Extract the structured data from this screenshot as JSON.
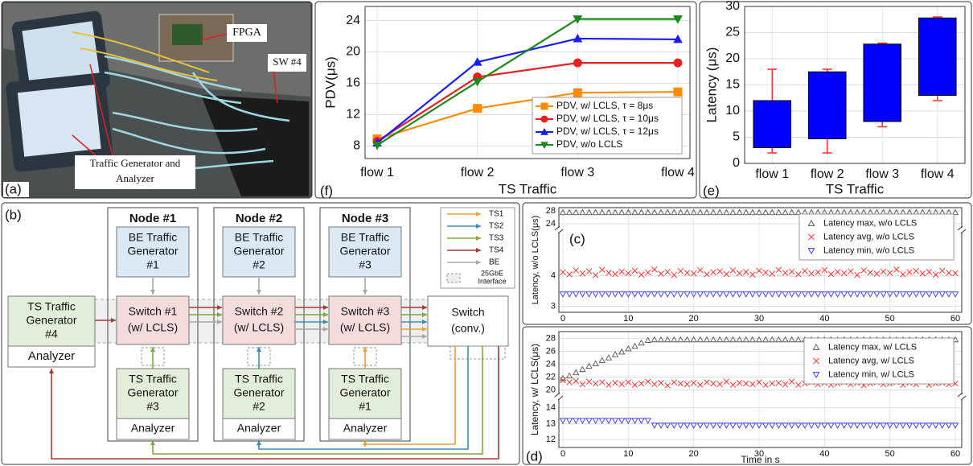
{
  "photo": {
    "label": "(a)",
    "callouts": {
      "fpga": "FPGA",
      "switch": "SW #4",
      "generator": [
        "Traffic Generator and",
        "Analyzer"
      ]
    }
  },
  "diagram": {
    "label": "(b)",
    "nodes": [
      {
        "title": "Node #1",
        "be_generator": [
          "BE Traffic",
          "Generator",
          "#1"
        ],
        "switch": [
          "Switch #1",
          "(w/ LCLS)"
        ],
        "ts_generator": [
          "TS Traffic",
          "Generator",
          "#3"
        ],
        "analyzer": "Analyzer"
      },
      {
        "title": "Node #2",
        "be_generator": [
          "BE Traffic",
          "Generator",
          "#2"
        ],
        "switch": [
          "Switch #2",
          "(w/ LCLS)"
        ],
        "ts_generator": [
          "TS Traffic",
          "Generator",
          "#2"
        ],
        "analyzer": "Analyzer"
      },
      {
        "title": "Node #3",
        "be_generator": [
          "BE Traffic",
          "Generator",
          "#3"
        ],
        "switch": [
          "Switch #3",
          "(w/ LCLS)"
        ],
        "ts_generator": [
          "TS Traffic",
          "Generator",
          "#1"
        ],
        "analyzer": "Analyzer"
      }
    ],
    "external": {
      "ts_generator": [
        "TS Traffic",
        "Generator",
        "#4"
      ],
      "analyzer": "Analyzer"
    },
    "conventional_switch": [
      "Switch",
      "(conv.)"
    ],
    "legend": [
      {
        "name": "TS1",
        "color": "#e6a23c"
      },
      {
        "name": "TS2",
        "color": "#3b8fb5"
      },
      {
        "name": "TS3",
        "color": "#7fa83e"
      },
      {
        "name": "TS4",
        "color": "#a33a32"
      },
      {
        "name": "BE",
        "color": "#a8a8a8"
      }
    ],
    "interface_legend": [
      "25GbE",
      "Interface"
    ]
  },
  "chart_data": [
    {
      "type": "line",
      "label": "(f)",
      "xlabel": "TS Traffic",
      "ylabel": "PDV(μs)",
      "categories": [
        "flow 1",
        "flow 2",
        "flow 3",
        "flow 4"
      ],
      "ylim": [
        6.4,
        25.8
      ],
      "yticks": [
        8,
        12,
        16,
        20,
        24
      ],
      "grid": true,
      "legend": "lower right",
      "series": [
        {
          "name": "PDV, w/ LCLS, τ = 8μs",
          "color": "#ff8c00",
          "marker": "square",
          "values": [
            8.9,
            12.8,
            14.8,
            14.9
          ]
        },
        {
          "name": "PDV, w/ LCLS, τ = 10μs",
          "color": "#e82020",
          "marker": "circle",
          "values": [
            8.6,
            16.8,
            18.6,
            18.6
          ]
        },
        {
          "name": "PDV, w/ LCLS, τ = 12μs",
          "color": "#1a1aff",
          "marker": "triangle-up",
          "values": [
            8.4,
            18.7,
            21.7,
            21.6
          ]
        },
        {
          "name": "PDV, w/o LCLS",
          "color": "#1a8a1a",
          "marker": "triangle-down",
          "values": [
            8.1,
            16.2,
            24.2,
            24.2
          ]
        }
      ]
    },
    {
      "type": "box",
      "label": "(e)",
      "xlabel": "TS Traffic",
      "ylabel": "Latency (μs)",
      "categories": [
        "flow 1",
        "flow 2",
        "flow 3",
        "flow 4"
      ],
      "ylim": [
        0,
        30
      ],
      "yticks": [
        0,
        5,
        10,
        15,
        20,
        25,
        30
      ],
      "grid": true,
      "color": "#0000ff",
      "whisker_color": "#ff3030",
      "boxes": [
        {
          "low": 2,
          "q1": 3,
          "q3": 12,
          "high": 18
        },
        {
          "low": 2,
          "q1": 4.7,
          "q3": 17.5,
          "high": 18
        },
        {
          "low": 7,
          "q1": 8,
          "q3": 22.8,
          "high": 23
        },
        {
          "low": 12,
          "q1": 13,
          "q3": 27.8,
          "high": 28
        }
      ]
    },
    {
      "type": "scatter",
      "label": "(c)",
      "ylabel": "Latency, w/o LCLS(μs)",
      "x": [
        0,
        1,
        2,
        3,
        4,
        5,
        6,
        7,
        8,
        9,
        10,
        11,
        12,
        13,
        14,
        15,
        16,
        17,
        18,
        19,
        20,
        21,
        22,
        23,
        24,
        25,
        26,
        27,
        28,
        29,
        30,
        31,
        32,
        33,
        34,
        35,
        36,
        37,
        38,
        39,
        40,
        41,
        42,
        43,
        44,
        45,
        46,
        47,
        48,
        49,
        50,
        51,
        52,
        53,
        54,
        55,
        56,
        57,
        58,
        59,
        60
      ],
      "xlim": [
        0,
        60
      ],
      "xticks": [
        0,
        10,
        20,
        30,
        40,
        50,
        60
      ],
      "y_segments": [
        {
          "ylim": [
            2.8,
            5.4
          ],
          "yticks": [
            3,
            4
          ]
        },
        {
          "ylim": [
            23,
            29
          ],
          "yticks": [
            24,
            28
          ]
        }
      ],
      "grid": true,
      "legend": "upper right",
      "series": [
        {
          "name": "Latency max, w/o LCLS",
          "color": "#555555",
          "marker": "triangle-up",
          "values": [
            27.5,
            27.5,
            27.5,
            27.5,
            27.5,
            27.5,
            27.5,
            27.5,
            27.5,
            27.5,
            27.5,
            27.5,
            27.5,
            27.5,
            27.5,
            27.5,
            27.5,
            27.5,
            27.5,
            27.5,
            27.5,
            27.5,
            27.5,
            27.5,
            27.5,
            27.5,
            27.5,
            27.5,
            27.5,
            27.5,
            27.5,
            27.5,
            27.5,
            27.5,
            27.5,
            27.5,
            27.5,
            27.5,
            27.5,
            27.5,
            27.5,
            27.5,
            27.5,
            27.5,
            27.5,
            27.5,
            27.5,
            27.5,
            27.5,
            27.5,
            27.5,
            27.5,
            27.5,
            27.5,
            27.5,
            27.5,
            27.5,
            27.5,
            27.5,
            27.5,
            27.5
          ]
        },
        {
          "name": "Latency avg, w/o LCLS",
          "color": "#ff2020",
          "marker": "x",
          "values": [
            4.12,
            4.05,
            4.18,
            4.08,
            4.15,
            4.02,
            4.2,
            4.1,
            4.06,
            4.14,
            4.09,
            4.17,
            4.04,
            4.11,
            4.21,
            4.07,
            4.13,
            4.03,
            4.16,
            4.1,
            4.08,
            4.19,
            4.05,
            4.12,
            4.15,
            4.06,
            4.18,
            4.09,
            4.13,
            4.04,
            4.17,
            4.11,
            4.07,
            4.2,
            4.1,
            4.14,
            4.05,
            4.16,
            4.08,
            4.12,
            4.19,
            4.06,
            4.13,
            4.09,
            4.15,
            4.03,
            4.18,
            4.11,
            4.07,
            4.14,
            4.1,
            4.21,
            4.05,
            4.12,
            4.16,
            4.08,
            4.13,
            4.04,
            4.17,
            4.1,
            4.09
          ]
        },
        {
          "name": "Latency min, w/o LCLS",
          "color": "#3030ff",
          "marker": "triangle-down",
          "values": [
            3.4,
            3.4,
            3.4,
            3.4,
            3.4,
            3.4,
            3.4,
            3.4,
            3.4,
            3.4,
            3.4,
            3.4,
            3.4,
            3.4,
            3.4,
            3.4,
            3.4,
            3.4,
            3.4,
            3.4,
            3.4,
            3.4,
            3.4,
            3.4,
            3.4,
            3.4,
            3.4,
            3.4,
            3.4,
            3.4,
            3.4,
            3.4,
            3.4,
            3.4,
            3.4,
            3.4,
            3.4,
            3.4,
            3.4,
            3.4,
            3.4,
            3.4,
            3.4,
            3.4,
            3.4,
            3.4,
            3.4,
            3.4,
            3.4,
            3.4,
            3.4,
            3.4,
            3.4,
            3.4,
            3.4,
            3.4,
            3.4,
            3.4,
            3.4,
            3.4,
            3.4
          ]
        }
      ]
    },
    {
      "type": "scatter",
      "label": "(d)",
      "xlabel": "Time in s",
      "ylabel": "Latency, w/ LCLS(μs)",
      "x": [
        0,
        1,
        2,
        3,
        4,
        5,
        6,
        7,
        8,
        9,
        10,
        11,
        12,
        13,
        14,
        15,
        16,
        17,
        18,
        19,
        20,
        21,
        22,
        23,
        24,
        25,
        26,
        27,
        28,
        29,
        30,
        31,
        32,
        33,
        34,
        35,
        36,
        37,
        38,
        39,
        40,
        41,
        42,
        43,
        44,
        45,
        46,
        47,
        48,
        49,
        50,
        51,
        52,
        53,
        54,
        55,
        56,
        57,
        58,
        59,
        60
      ],
      "xlim": [
        0,
        60
      ],
      "xticks": [
        0,
        10,
        20,
        30,
        40,
        50,
        60
      ],
      "y_segments": [
        {
          "ylim": [
            11.5,
            14.6
          ],
          "yticks": [
            12,
            13,
            14
          ]
        },
        {
          "ylim": [
            19.2,
            28.8
          ],
          "yticks": [
            20,
            22,
            24,
            26,
            28
          ]
        }
      ],
      "grid": true,
      "legend": "upper right",
      "series": [
        {
          "name": "Latency max, w/ LCLS",
          "color": "#555555",
          "marker": "triangle-up",
          "values": [
            21.8,
            22.2,
            22.7,
            23.2,
            23.7,
            24.1,
            24.6,
            25.0,
            25.5,
            25.9,
            26.4,
            26.8,
            27.3,
            27.7,
            27.8,
            27.8,
            27.8,
            27.8,
            27.8,
            27.8,
            27.8,
            27.8,
            27.8,
            27.8,
            27.8,
            27.8,
            27.8,
            27.8,
            27.8,
            27.8,
            27.8,
            27.8,
            27.8,
            27.8,
            27.8,
            27.8,
            27.8,
            27.8,
            27.8,
            27.8,
            27.8,
            27.8,
            27.8,
            27.8,
            27.8,
            27.8,
            27.8,
            27.8,
            27.8,
            27.8,
            27.8,
            27.8,
            27.8,
            27.8,
            27.8,
            27.8,
            27.8,
            27.8,
            27.8,
            27.8,
            27.8
          ]
        },
        {
          "name": "Latency avg, w/ LCLS",
          "color": "#ff2020",
          "marker": "x",
          "values": [
            21.5,
            21.2,
            21.4,
            20.9,
            21.3,
            21.0,
            21.2,
            20.8,
            21.1,
            20.9,
            21.2,
            20.8,
            21.0,
            21.3,
            20.9,
            21.1,
            20.7,
            21.2,
            21.0,
            20.9,
            21.1,
            20.8,
            21.2,
            21.0,
            20.9,
            21.3,
            20.8,
            21.1,
            21.0,
            20.9,
            21.2,
            20.8,
            21.0,
            21.1,
            20.9,
            21.3,
            20.8,
            21.0,
            21.2,
            20.9,
            21.1,
            20.8,
            21.0,
            21.2,
            20.9,
            21.1,
            20.7,
            21.0,
            21.2,
            20.9,
            21.0,
            21.2,
            20.8,
            21.1,
            20.9,
            21.3,
            20.8,
            21.0,
            21.1,
            20.9,
            21.0
          ]
        },
        {
          "name": "Latency min, w/ LCLS",
          "color": "#3030ff",
          "marker": "triangle-down",
          "values": [
            13.2,
            13.2,
            13.2,
            13.2,
            13.2,
            13.2,
            13.2,
            13.2,
            13.2,
            13.2,
            13.2,
            13.2,
            13.2,
            13.2,
            12.9,
            12.9,
            12.9,
            12.9,
            12.9,
            12.9,
            12.9,
            12.9,
            12.9,
            12.9,
            12.9,
            12.9,
            12.9,
            12.9,
            12.9,
            12.9,
            12.9,
            12.9,
            12.9,
            12.9,
            12.9,
            12.9,
            12.9,
            12.9,
            12.9,
            12.9,
            12.9,
            12.9,
            12.9,
            12.9,
            12.9,
            12.9,
            12.9,
            12.9,
            12.9,
            12.9,
            12.9,
            12.9,
            12.9,
            12.9,
            12.9,
            12.9,
            12.9,
            12.9,
            12.9,
            12.9,
            12.9
          ]
        }
      ]
    }
  ]
}
